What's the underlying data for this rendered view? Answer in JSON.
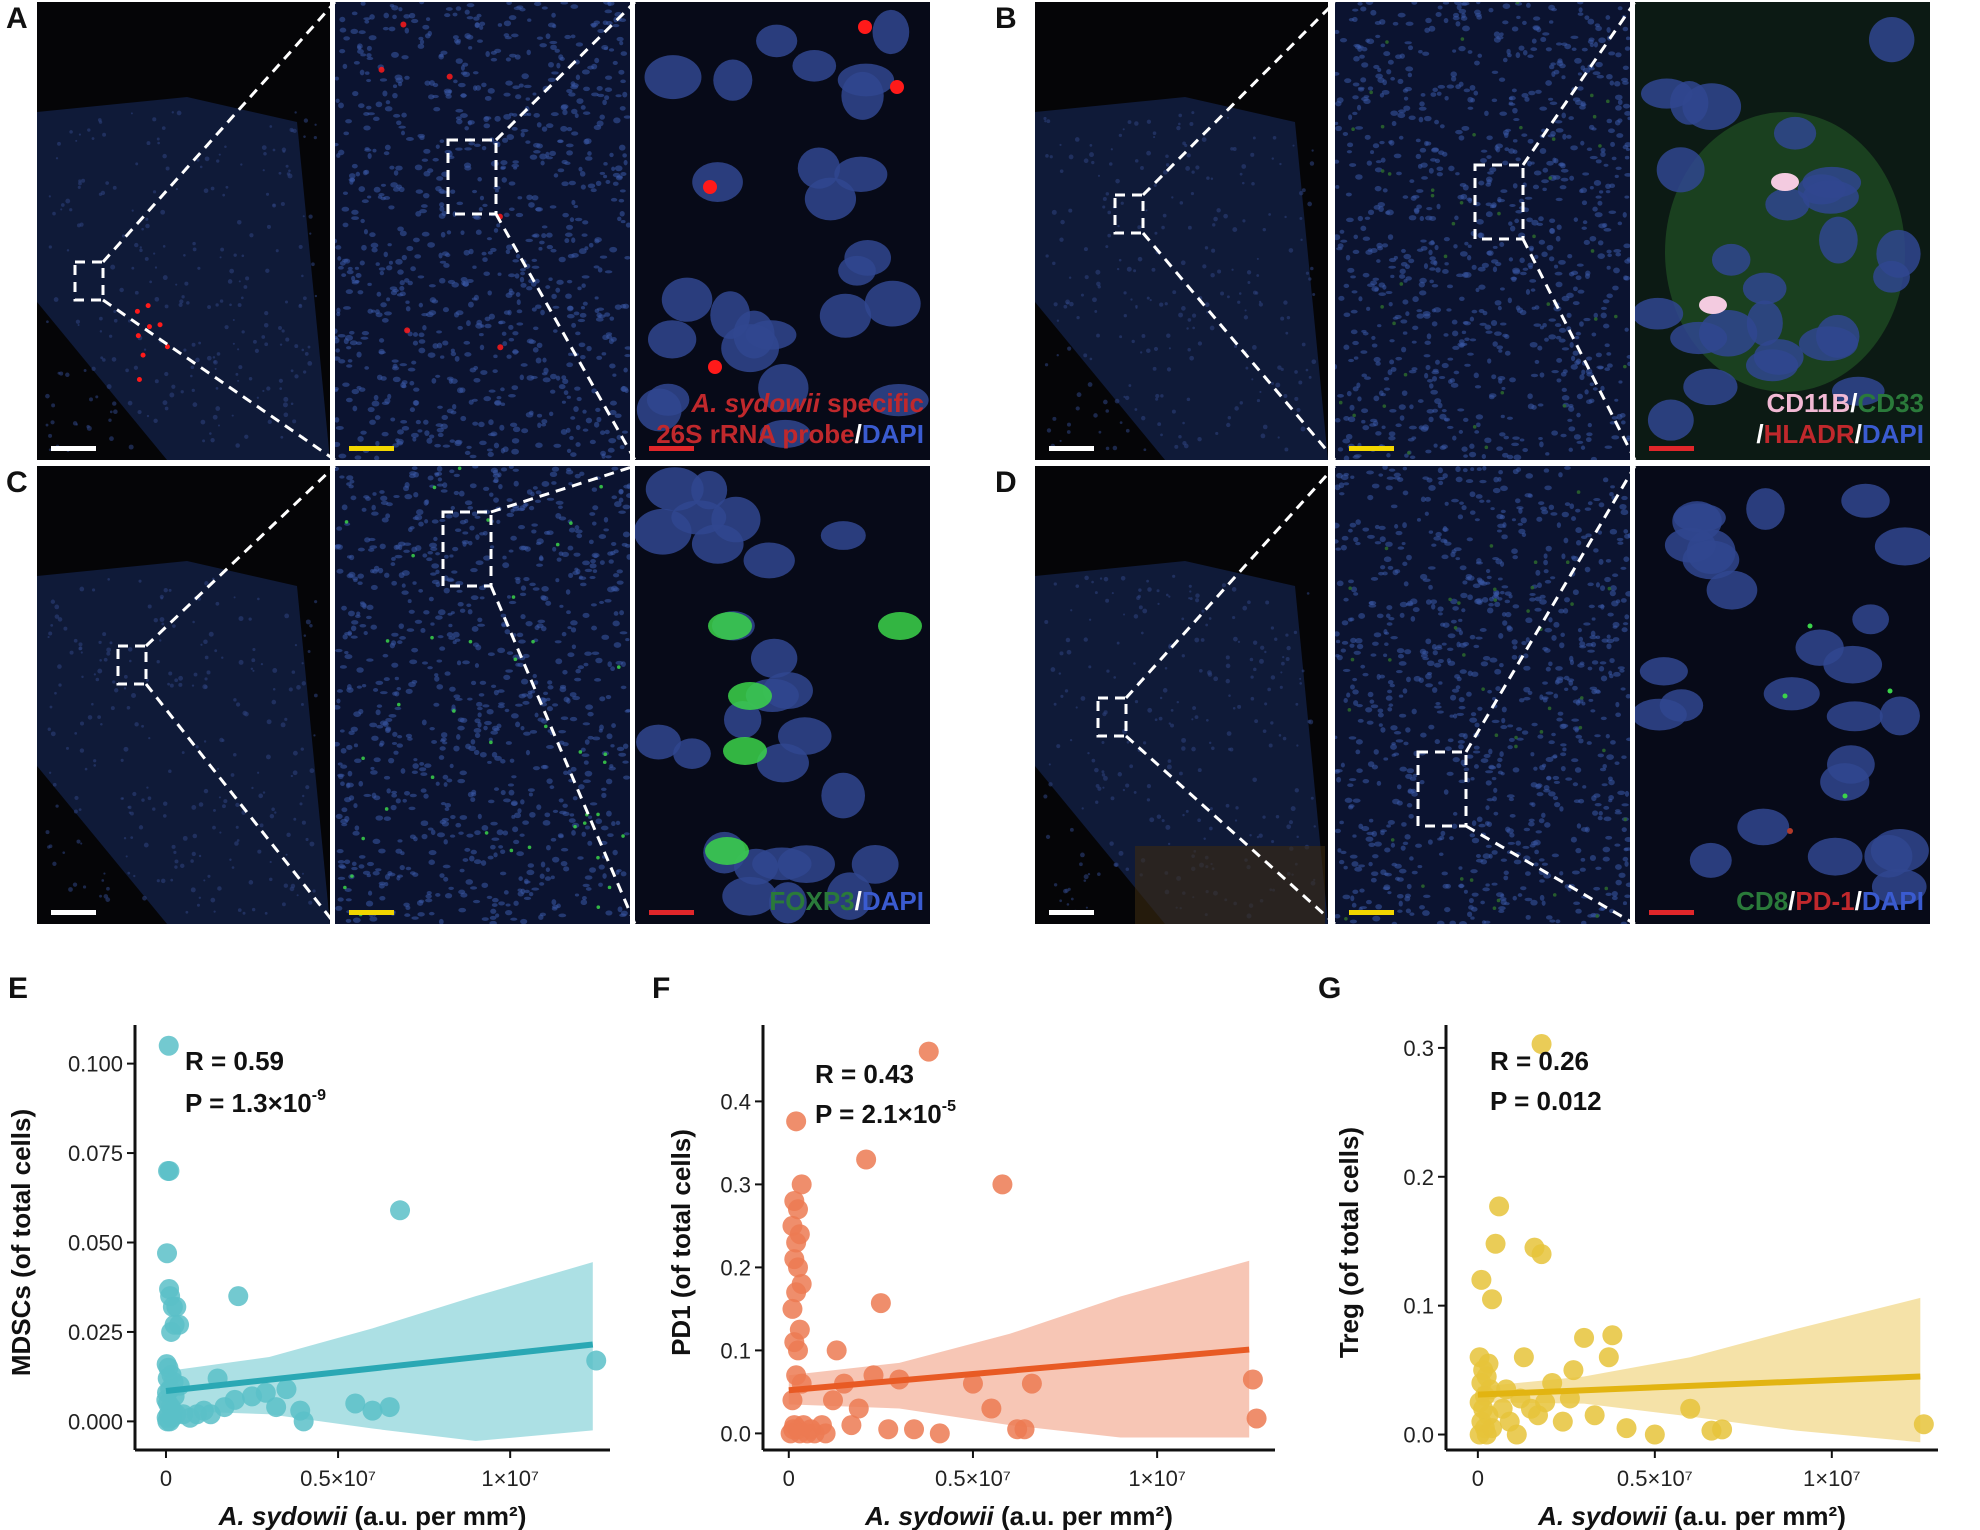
{
  "figure": {
    "panels": {
      "A": {
        "label": "A",
        "stain_parts": [
          {
            "text": "A. sydowii",
            "color": "#c0282c",
            "italic": true
          },
          {
            "text": " specific",
            "color": "#c0282c",
            "italic": false
          },
          {
            "text": "26S rRNA probe",
            "color": "#c0282c",
            "italic": false
          },
          {
            "text": "/",
            "color": "#ffffff",
            "italic": false
          },
          {
            "text": "DAPI",
            "color": "#3a5bd0",
            "italic": false
          }
        ]
      },
      "B": {
        "label": "B",
        "stain_parts": [
          {
            "text": "CD11B",
            "color": "#f1b9d4",
            "italic": false
          },
          {
            "text": "/",
            "color": "#ffffff",
            "italic": false
          },
          {
            "text": "CD33",
            "color": "#2a7a3a",
            "italic": false
          },
          {
            "text": "/",
            "color": "#ffffff",
            "italic": false
          },
          {
            "text": "HLADR",
            "color": "#c0282c",
            "italic": false
          },
          {
            "text": "/",
            "color": "#ffffff",
            "italic": false
          },
          {
            "text": "DAPI",
            "color": "#3a5bd0",
            "italic": false
          }
        ]
      },
      "C": {
        "label": "C",
        "stain_parts": [
          {
            "text": "FOXP3",
            "color": "#2a7a3a",
            "italic": false
          },
          {
            "text": "/",
            "color": "#ffffff",
            "italic": false
          },
          {
            "text": "DAPI",
            "color": "#3a5bd0",
            "italic": false
          }
        ]
      },
      "D": {
        "label": "D",
        "stain_parts": [
          {
            "text": "CD8",
            "color": "#2a7a3a",
            "italic": false
          },
          {
            "text": "/",
            "color": "#ffffff",
            "italic": false
          },
          {
            "text": "PD-1",
            "color": "#c0282c",
            "italic": false
          },
          {
            "text": "/",
            "color": "#ffffff",
            "italic": false
          },
          {
            "text": "DAPI",
            "color": "#3a5bd0",
            "italic": false
          }
        ]
      }
    },
    "colors": {
      "scalebar_overview": "#ffffff",
      "scalebar_mid": "#f2d600",
      "scalebar_zoom": "#e0262a",
      "nuclei": "#3a5aa8",
      "signal_red": "#ff1a1a",
      "signal_green": "#3bd34a"
    }
  },
  "chart_data": [
    {
      "panel": "E",
      "type": "scatter",
      "xlabel_italic": "A. sydowii",
      "xlabel_rest": " (a.u. per mm²)",
      "ylabel": "MDSCs (of total cells)",
      "color": "#5ac0c8",
      "line_color": "#2aa8b4",
      "band_color": "#7fd0d6",
      "x_ticks": [
        0,
        5000000,
        10000000
      ],
      "x_tick_labels": [
        "0",
        "0.5×10⁷",
        "1×10⁷"
      ],
      "y_ticks": [
        0,
        0.025,
        0.05,
        0.075,
        0.1
      ],
      "y_tick_labels": [
        "0.000",
        "0.025",
        "0.050",
        "0.075",
        "0.100"
      ],
      "xlim": [
        -900000,
        12900000
      ],
      "ylim": [
        -0.008,
        0.108
      ],
      "stat_R": "R = 0.59",
      "stat_P_base": "P = 1.3×10",
      "stat_P_exp": "-9",
      "fit": {
        "x0": 0,
        "y0": 0.0085,
        "x1": 12400000,
        "y1": 0.0215
      },
      "band": {
        "upper": [
          [
            0,
            0.014
          ],
          [
            3000000,
            0.018
          ],
          [
            6000000,
            0.026
          ],
          [
            9000000,
            0.035
          ],
          [
            12400000,
            0.0445
          ]
        ],
        "lower": [
          [
            0,
            0.003
          ],
          [
            3000000,
            0.002
          ],
          [
            6000000,
            -0.002
          ],
          [
            9000000,
            -0.0055
          ],
          [
            12400000,
            -0.0025
          ]
        ]
      },
      "points": [
        [
          80000,
          0.105
        ],
        [
          60000,
          0.07
        ],
        [
          100000,
          0.07
        ],
        [
          30000,
          0.047
        ],
        [
          90000,
          0.037
        ],
        [
          120000,
          0.035
        ],
        [
          200000,
          0.032
        ],
        [
          300000,
          0.032
        ],
        [
          380000,
          0.027
        ],
        [
          250000,
          0.027
        ],
        [
          150000,
          0.025
        ],
        [
          20000,
          0.016
        ],
        [
          70000,
          0.015
        ],
        [
          160000,
          0.013
        ],
        [
          50000,
          0.012
        ],
        [
          220000,
          0.011
        ],
        [
          400000,
          0.01
        ],
        [
          120000,
          0.009
        ],
        [
          30000,
          0.008
        ],
        [
          250000,
          0.007
        ],
        [
          10000,
          0.006
        ],
        [
          60000,
          0.005
        ],
        [
          140000,
          0.004
        ],
        [
          200000,
          0.003
        ],
        [
          80000,
          0.002
        ],
        [
          20000,
          0.001
        ],
        [
          110000,
          0.0
        ],
        [
          40000,
          0.0
        ],
        [
          180000,
          0.001
        ],
        [
          300000,
          0.002
        ],
        [
          500000,
          0.002
        ],
        [
          700000,
          0.001
        ],
        [
          900000,
          0.002
        ],
        [
          1100000,
          0.003
        ],
        [
          1300000,
          0.002
        ],
        [
          1500000,
          0.012
        ],
        [
          1700000,
          0.004
        ],
        [
          2100000,
          0.035
        ],
        [
          2000000,
          0.006
        ],
        [
          2500000,
          0.007
        ],
        [
          2900000,
          0.008
        ],
        [
          3200000,
          0.004
        ],
        [
          3900000,
          0.003
        ],
        [
          4000000,
          0.0
        ],
        [
          5500000,
          0.005
        ],
        [
          6000000,
          0.003
        ],
        [
          6500000,
          0.004
        ],
        [
          6800000,
          0.059
        ],
        [
          12500000,
          0.017
        ],
        [
          3500000,
          0.009
        ]
      ]
    },
    {
      "panel": "F",
      "type": "scatter",
      "xlabel_italic": "A. sydowii",
      "xlabel_rest": " (a.u. per mm²)",
      "ylabel": "PD1 (of total cells)",
      "color": "#ec7a52",
      "line_color": "#e85a24",
      "band_color": "#f2a88e",
      "x_ticks": [
        0,
        5000000,
        10000000
      ],
      "x_tick_labels": [
        "0",
        "0.5×10⁷",
        "1×10⁷"
      ],
      "y_ticks": [
        0,
        0.1,
        0.2,
        0.3,
        0.4
      ],
      "y_tick_labels": [
        "0.0",
        "0.1",
        "0.2",
        "0.3",
        "0.4"
      ],
      "xlim": [
        -700000,
        13200000
      ],
      "ylim": [
        -0.02,
        0.48
      ],
      "stat_R": "R = 0.43",
      "stat_P_base": "P = 2.1×10",
      "stat_P_exp": "-5",
      "fit": {
        "x0": 0,
        "y0": 0.052,
        "x1": 12500000,
        "y1": 0.101
      },
      "band": {
        "upper": [
          [
            0,
            0.07
          ],
          [
            3000000,
            0.085
          ],
          [
            6000000,
            0.12
          ],
          [
            9000000,
            0.165
          ],
          [
            12500000,
            0.208
          ]
        ],
        "lower": [
          [
            0,
            0.035
          ],
          [
            3000000,
            0.03
          ],
          [
            6000000,
            0.01
          ],
          [
            9000000,
            -0.005
          ],
          [
            12500000,
            -0.005
          ]
        ]
      },
      "points": [
        [
          200000,
          0.376
        ],
        [
          350000,
          0.3
        ],
        [
          150000,
          0.28
        ],
        [
          250000,
          0.27
        ],
        [
          100000,
          0.25
        ],
        [
          300000,
          0.24
        ],
        [
          200000,
          0.23
        ],
        [
          150000,
          0.21
        ],
        [
          250000,
          0.2
        ],
        [
          350000,
          0.18
        ],
        [
          200000,
          0.17
        ],
        [
          100000,
          0.15
        ],
        [
          300000,
          0.125
        ],
        [
          150000,
          0.11
        ],
        [
          250000,
          0.1
        ],
        [
          200000,
          0.07
        ],
        [
          350000,
          0.06
        ],
        [
          100000,
          0.04
        ],
        [
          150000,
          0.01
        ],
        [
          250000,
          0.005
        ],
        [
          50000,
          0.0
        ],
        [
          120000,
          0.005
        ],
        [
          300000,
          0.0
        ],
        [
          400000,
          0.01
        ],
        [
          500000,
          0.0
        ],
        [
          600000,
          0.005
        ],
        [
          700000,
          0.0
        ],
        [
          900000,
          0.01
        ],
        [
          1000000,
          0.0
        ],
        [
          1200000,
          0.04
        ],
        [
          1300000,
          0.1
        ],
        [
          1500000,
          0.06
        ],
        [
          1700000,
          0.01
        ],
        [
          1900000,
          0.03
        ],
        [
          2100000,
          0.33
        ],
        [
          2300000,
          0.07
        ],
        [
          2500000,
          0.157
        ],
        [
          2700000,
          0.005
        ],
        [
          3000000,
          0.065
        ],
        [
          3400000,
          0.005
        ],
        [
          3800000,
          0.46
        ],
        [
          4100000,
          0.0
        ],
        [
          5000000,
          0.06
        ],
        [
          5500000,
          0.03
        ],
        [
          5800000,
          0.3
        ],
        [
          6200000,
          0.005
        ],
        [
          6400000,
          0.005
        ],
        [
          6600000,
          0.06
        ],
        [
          12600000,
          0.065
        ],
        [
          12700000,
          0.018
        ]
      ]
    },
    {
      "panel": "G",
      "type": "scatter",
      "xlabel_italic": "A. sydowii",
      "xlabel_rest": " (a.u. per mm²)",
      "ylabel": "Treg (of total cells)",
      "color": "#e6c33a",
      "line_color": "#e2b411",
      "band_color": "#efd37a",
      "x_ticks": [
        0,
        5000000,
        10000000
      ],
      "x_tick_labels": [
        "0",
        "0.5×10⁷",
        "1×10⁷"
      ],
      "y_ticks": [
        0,
        0.1,
        0.2,
        0.3
      ],
      "y_tick_labels": [
        "0.0",
        "0.1",
        "0.2",
        "0.3"
      ],
      "xlim": [
        -900000,
        13000000
      ],
      "ylim": [
        -0.012,
        0.31
      ],
      "stat_R": "R = 0.26",
      "stat_P_base": "P = 0.012",
      "stat_P_exp": "",
      "fit": {
        "x0": 0,
        "y0": 0.031,
        "x1": 12500000,
        "y1": 0.045
      },
      "band": {
        "upper": [
          [
            0,
            0.037
          ],
          [
            3000000,
            0.045
          ],
          [
            6000000,
            0.06
          ],
          [
            9000000,
            0.082
          ],
          [
            12500000,
            0.106
          ]
        ],
        "lower": [
          [
            0,
            0.025
          ],
          [
            3000000,
            0.024
          ],
          [
            6000000,
            0.014
          ],
          [
            9000000,
            0.003
          ],
          [
            12500000,
            -0.006
          ]
        ]
      },
      "points": [
        [
          1800000,
          0.303
        ],
        [
          600000,
          0.177
        ],
        [
          500000,
          0.148
        ],
        [
          1600000,
          0.145
        ],
        [
          1800000,
          0.14
        ],
        [
          100000,
          0.12
        ],
        [
          400000,
          0.105
        ],
        [
          50000,
          0.06
        ],
        [
          300000,
          0.055
        ],
        [
          150000,
          0.05
        ],
        [
          250000,
          0.045
        ],
        [
          100000,
          0.04
        ],
        [
          350000,
          0.035
        ],
        [
          200000,
          0.03
        ],
        [
          50000,
          0.025
        ],
        [
          150000,
          0.02
        ],
        [
          300000,
          0.015
        ],
        [
          100000,
          0.01
        ],
        [
          200000,
          0.005
        ],
        [
          50000,
          0.0
        ],
        [
          250000,
          0.0
        ],
        [
          400000,
          0.005
        ],
        [
          700000,
          0.02
        ],
        [
          900000,
          0.01
        ],
        [
          1100000,
          0.0
        ],
        [
          1300000,
          0.06
        ],
        [
          1500000,
          0.02
        ],
        [
          1700000,
          0.015
        ],
        [
          1900000,
          0.025
        ],
        [
          2100000,
          0.04
        ],
        [
          2400000,
          0.01
        ],
        [
          2700000,
          0.05
        ],
        [
          3000000,
          0.075
        ],
        [
          3300000,
          0.015
        ],
        [
          3700000,
          0.06
        ],
        [
          3800000,
          0.077
        ],
        [
          2600000,
          0.028
        ],
        [
          4200000,
          0.005
        ],
        [
          5000000,
          0.0
        ],
        [
          6000000,
          0.02
        ],
        [
          6600000,
          0.003
        ],
        [
          6900000,
          0.004
        ],
        [
          12600000,
          0.008
        ],
        [
          800000,
          0.035
        ],
        [
          1200000,
          0.028
        ]
      ]
    }
  ]
}
